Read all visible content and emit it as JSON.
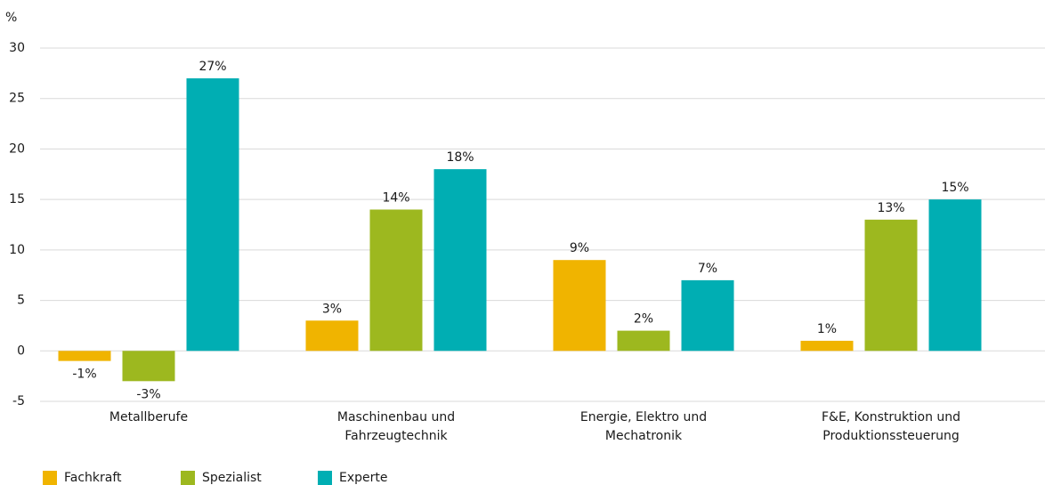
{
  "chart_data": {
    "type": "bar",
    "y_unit": "%",
    "categories": [
      "Metallberufe",
      "Maschinenbau und\nFahrzeugtechnik",
      "Energie, Elektro und\nMechatronik",
      "F&E, Konstruktion und\nProduktionssteuerung"
    ],
    "series": [
      {
        "name": "Fachkraft",
        "color": "#f0b400",
        "values": [
          -1,
          3,
          9,
          1
        ],
        "value_labels": [
          "-1%",
          "3%",
          "9%",
          "1%"
        ]
      },
      {
        "name": "Spezialist",
        "color": "#9db81f",
        "values": [
          -3,
          14,
          2,
          13
        ],
        "value_labels": [
          "-3%",
          "14%",
          "2%",
          "13%"
        ]
      },
      {
        "name": "Experte",
        "color": "#00aeb3",
        "values": [
          27,
          18,
          7,
          15
        ],
        "value_labels": [
          "27%",
          "18%",
          "7%",
          "15%"
        ]
      }
    ],
    "ylim": [
      -5,
      30
    ],
    "yticks": [
      -5,
      0,
      5,
      10,
      15,
      20,
      25,
      30
    ],
    "grid": true,
    "legend": "bottom-left"
  }
}
